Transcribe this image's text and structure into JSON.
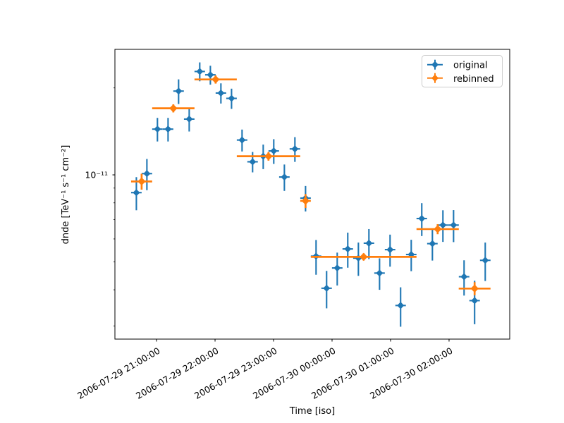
{
  "figure": {
    "background": "#ffffff"
  },
  "legend": {
    "items": [
      {
        "label": "original",
        "color": "#1f77b4"
      },
      {
        "label": "rebinned",
        "color": "#ff7f0e"
      }
    ]
  },
  "chart_data": {
    "type": "scatter",
    "subtype": "errorbar-lightcurve",
    "title": "",
    "xlabel": "Time [iso]",
    "ylabel": "dnde [TeV⁻¹ s⁻¹ cm⁻²]",
    "grid": false,
    "legend_position": "upper right",
    "x_axis": {
      "unit": "minutes since 2006-07-29 21:00:00",
      "range_minutes": [
        -42.7,
        362.2
      ],
      "ticks": [
        {
          "minutes": 0,
          "label": "2006-07-29 21:00:00"
        },
        {
          "minutes": 60,
          "label": "2006-07-29 22:00:00"
        },
        {
          "minutes": 120,
          "label": "2006-07-29 23:00:00"
        },
        {
          "minutes": 180,
          "label": "2006-07-30 00:00:00"
        },
        {
          "minutes": 240,
          "label": "2006-07-30 01:00:00"
        },
        {
          "minutes": 300,
          "label": "2006-07-30 02:00:00"
        }
      ]
    },
    "y_axis": {
      "scale": "log",
      "range": [
        2.7e-12,
        2.72e-11
      ],
      "major_label": "10⁻¹¹",
      "major_ticks": [
        1e-11
      ],
      "minor_ticks": [
        2e-11,
        9e-12,
        8e-12,
        7e-12,
        6e-12,
        5e-12,
        4e-12,
        3e-12
      ]
    },
    "series": [
      {
        "name": "original",
        "color": "#1f77b4",
        "marker": "diamond",
        "xerr_minutes": 5.4,
        "points": [
          {
            "time": "2006-07-29 20:39",
            "t": -20.7,
            "flux": 8.68e-12,
            "ferr": 1.14e-12
          },
          {
            "time": "2006-07-29 20:50",
            "t": -9.9,
            "flux": 1.01e-11,
            "ferr": 1.25e-12
          },
          {
            "time": "2006-07-29 21:01",
            "t": 0.9,
            "flux": 1.44e-11,
            "ferr": 1.35e-12
          },
          {
            "time": "2006-07-29 21:12",
            "t": 11.8,
            "flux": 1.44e-11,
            "ferr": 1.35e-12
          },
          {
            "time": "2006-07-29 21:23",
            "t": 22.6,
            "flux": 1.95e-11,
            "ferr": 1.91e-12
          },
          {
            "time": "2006-07-29 21:33",
            "t": 33.5,
            "flux": 1.56e-11,
            "ferr": 1.47e-12
          },
          {
            "time": "2006-07-29 21:44",
            "t": 44.3,
            "flux": 2.28e-11,
            "ferr": 1.71e-12
          },
          {
            "time": "2006-07-29 21:55",
            "t": 55.2,
            "flux": 2.22e-11,
            "ferr": 1.67e-12
          },
          {
            "time": "2006-07-29 22:06",
            "t": 66.0,
            "flux": 1.92e-11,
            "ferr": 1.54e-12
          },
          {
            "time": "2006-07-29 22:17",
            "t": 76.9,
            "flux": 1.84e-11,
            "ferr": 1.48e-12
          },
          {
            "time": "2006-07-29 22:28",
            "t": 87.7,
            "flux": 1.32e-11,
            "ferr": 1.15e-12
          },
          {
            "time": "2006-07-29 22:39",
            "t": 98.5,
            "flux": 1.11e-11,
            "ferr": 9e-13
          },
          {
            "time": "2006-07-29 22:49",
            "t": 109.4,
            "flux": 1.16e-11,
            "ferr": 1.13e-12
          },
          {
            "time": "2006-07-29 23:00",
            "t": 120.2,
            "flux": 1.21e-11,
            "ferr": 1.19e-12
          },
          {
            "time": "2006-07-29 23:11",
            "t": 131.1,
            "flux": 9.83e-12,
            "ferr": 1.03e-12
          },
          {
            "time": "2006-07-29 23:22",
            "t": 141.9,
            "flux": 1.23e-11,
            "ferr": 1.21e-12
          },
          {
            "time": "2006-07-29 23:33",
            "t": 152.8,
            "flux": 8.31e-12,
            "ferr": 8.4e-13
          },
          {
            "time": "2006-07-29 23:44",
            "t": 163.6,
            "flux": 5.23e-12,
            "ferr": 7.2e-13
          },
          {
            "time": "2006-07-29 23:54",
            "t": 174.4,
            "flux": 4.05e-12,
            "ferr": 6e-13
          },
          {
            "time": "2006-07-30 00:05",
            "t": 185.3,
            "flux": 4.76e-12,
            "ferr": 6.2e-13
          },
          {
            "time": "2006-07-30 00:16",
            "t": 196.1,
            "flux": 5.54e-12,
            "ferr": 7.7e-13
          },
          {
            "time": "2006-07-30 00:27",
            "t": 207.0,
            "flux": 5.15e-12,
            "ferr": 6.8e-13
          },
          {
            "time": "2006-07-30 00:38",
            "t": 217.8,
            "flux": 5.8e-12,
            "ferr": 6.9e-13
          },
          {
            "time": "2006-07-30 00:49",
            "t": 228.7,
            "flux": 4.57e-12,
            "ferr": 5.7e-13
          },
          {
            "time": "2006-07-30 00:59",
            "t": 239.5,
            "flux": 5.51e-12,
            "ferr": 7e-13
          },
          {
            "time": "2006-07-30 01:10",
            "t": 250.3,
            "flux": 3.53e-12,
            "ferr": 5.5e-13
          },
          {
            "time": "2006-07-30 01:21",
            "t": 261.2,
            "flux": 5.3e-12,
            "ferr": 6.6e-13
          },
          {
            "time": "2006-07-30 01:32",
            "t": 272.0,
            "flux": 7.06e-12,
            "ferr": 9.2e-13
          },
          {
            "time": "2006-07-30 01:43",
            "t": 282.9,
            "flux": 5.78e-12,
            "ferr": 7.3e-13
          },
          {
            "time": "2006-07-30 01:54",
            "t": 293.7,
            "flux": 6.7e-12,
            "ferr": 8.4e-13
          },
          {
            "time": "2006-07-30 02:05",
            "t": 304.6,
            "flux": 6.7e-12,
            "ferr": 8.5e-13
          },
          {
            "time": "2006-07-30 02:15",
            "t": 315.4,
            "flux": 4.44e-12,
            "ferr": 6.2e-13
          },
          {
            "time": "2006-07-30 02:26",
            "t": 326.2,
            "flux": 3.67e-12,
            "ferr": 6.3e-13
          },
          {
            "time": "2006-07-30 02:37",
            "t": 337.1,
            "flux": 5.06e-12,
            "ferr": 7.7e-13
          }
        ]
      },
      {
        "name": "rebinned",
        "color": "#ff7f0e",
        "marker": "diamond",
        "points": [
          {
            "time": "2006-07-29 20:45",
            "t": -15.3,
            "xerr": 10.8,
            "flux": 9.49e-12,
            "ferr": 6e-13
          },
          {
            "time": "2006-07-29 21:17",
            "t": 17.2,
            "xerr": 21.7,
            "flux": 1.7e-11,
            "ferr": 5.5e-13
          },
          {
            "time": "2006-07-29 22:01",
            "t": 60.6,
            "xerr": 21.7,
            "flux": 2.14e-11,
            "ferr": 7e-13
          },
          {
            "time": "2006-07-29 22:55",
            "t": 114.8,
            "xerr": 32.5,
            "flux": 1.16e-11,
            "ferr": 4e-13
          },
          {
            "time": "2006-07-29 23:33",
            "t": 152.8,
            "xerr": 5.4,
            "flux": 8.13e-12,
            "ferr": 4.5e-13
          },
          {
            "time": "2006-07-30 00:32",
            "t": 212.4,
            "xerr": 54.2,
            "flux": 5.2e-12,
            "ferr": 1.5e-13
          },
          {
            "time": "2006-07-30 01:48",
            "t": 288.3,
            "xerr": 21.7,
            "flux": 6.49e-12,
            "ferr": 2.6e-13
          },
          {
            "time": "2006-07-30 02:25",
            "t": 326.2,
            "xerr": 16.3,
            "flux": 4.04e-12,
            "ferr": 2.1e-13
          }
        ]
      }
    ]
  }
}
